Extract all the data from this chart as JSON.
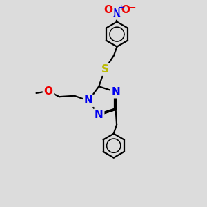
{
  "bg_color": "#dcdcdc",
  "bond_color": "#000000",
  "bond_width": 1.6,
  "atom_colors": {
    "N": "#0000ee",
    "O": "#ee0000",
    "S": "#bbbb00",
    "C": "#000000"
  },
  "font_size_atom": 11,
  "font_size_charge": 8
}
